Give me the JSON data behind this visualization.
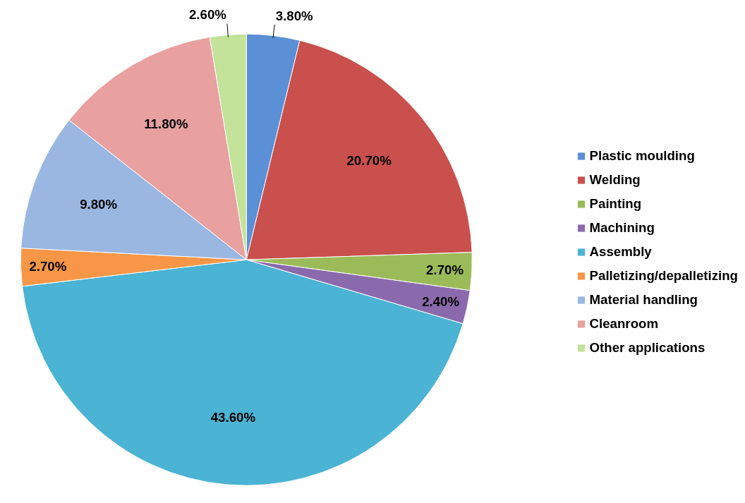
{
  "chart_data": {
    "type": "pie",
    "categories": [
      "Plastic moulding",
      "Welding",
      "Painting",
      "Machining",
      "Assembly",
      "Palletizing/depalletizing",
      "Material handling",
      "Cleanroom",
      "Other applications"
    ],
    "values": [
      3.8,
      20.7,
      2.7,
      2.4,
      43.6,
      2.7,
      9.8,
      11.8,
      2.6
    ],
    "colors": [
      "#5b8fd6",
      "#c9504d",
      "#9bbb59",
      "#8a6aac",
      "#4bb3d3",
      "#f79646",
      "#9ab7e2",
      "#e8a0a0",
      "#c3e29a"
    ],
    "value_labels": [
      "3.80%",
      "20.70%",
      "2.70%",
      "2.40%",
      "43.60%",
      "2.70%",
      "9.80%",
      "11.80%",
      "2.60%"
    ],
    "legend": "right"
  }
}
